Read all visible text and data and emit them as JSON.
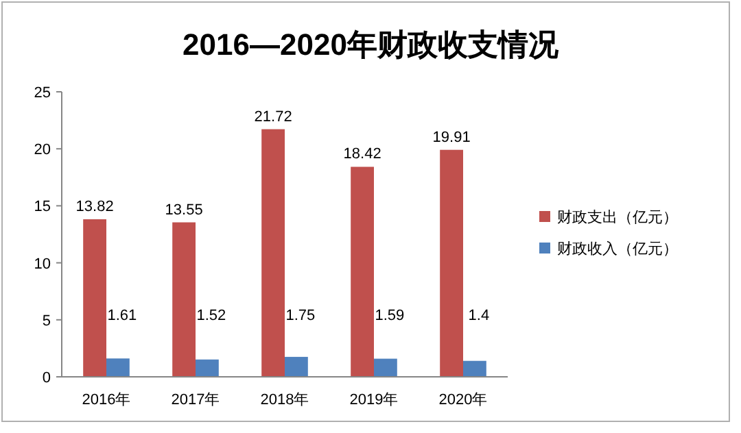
{
  "chart_data": {
    "type": "bar",
    "title": "2016—2020年财政收支情况",
    "categories": [
      "2016年",
      "2017年",
      "2018年",
      "2019年",
      "2020年"
    ],
    "series": [
      {
        "name": "财政支出（亿元）",
        "color": "#c0504d",
        "values": [
          13.82,
          13.55,
          21.72,
          18.42,
          19.91
        ]
      },
      {
        "name": "财政收入（亿元）",
        "color": "#4f81bd",
        "values": [
          1.61,
          1.52,
          1.75,
          1.59,
          1.4
        ]
      }
    ],
    "ylim": [
      0,
      25
    ],
    "yticks": [
      0,
      5,
      10,
      15,
      20,
      25
    ],
    "data_labels": true,
    "legend": "right"
  }
}
